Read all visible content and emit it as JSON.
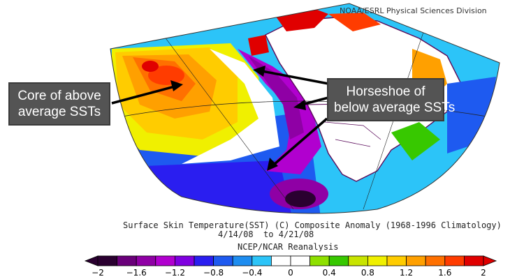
{
  "source_label": "NOAA/ESRL Physical Sciences Division",
  "callouts": {
    "core": {
      "line1": "Core of above",
      "line2": "average SSTs"
    },
    "horseshoe": {
      "line1": "Horseshoe of",
      "line2": "below average SSTs"
    }
  },
  "caption": {
    "title": "Surface Skin Temperature(SST) (C) Composite Anomaly (1968-1996 Climatology)",
    "date_range": "4/14/08  to 4/21/08",
    "reanalysis": "NCEP/NCAR Reanalysis"
  },
  "colorbar": {
    "min": -2,
    "max": 2,
    "step": 0.2,
    "tick_labels": [
      "−2",
      "−1.6",
      "−1.2",
      "−0.8",
      "−0.4",
      "0",
      "0.4",
      "0.8",
      "1.2",
      "1.6",
      "2"
    ],
    "colors": [
      "#2a0030",
      "#6a007a",
      "#8f00a5",
      "#b100cf",
      "#7f00e0",
      "#2a1ef0",
      "#1e5af0",
      "#1e8df0",
      "#2cc4f8",
      "#ffffff",
      "#ffffff",
      "#8ee000",
      "#37c800",
      "#c8e400",
      "#f0f000",
      "#ffcc00",
      "#ffa000",
      "#ff7000",
      "#ff3c00",
      "#e00000"
    ]
  },
  "palette": {
    "land": "#ffffff",
    "coast": "#5a0a5a",
    "warm_core": "#ff3c00",
    "cold": "#8f00a5"
  }
}
